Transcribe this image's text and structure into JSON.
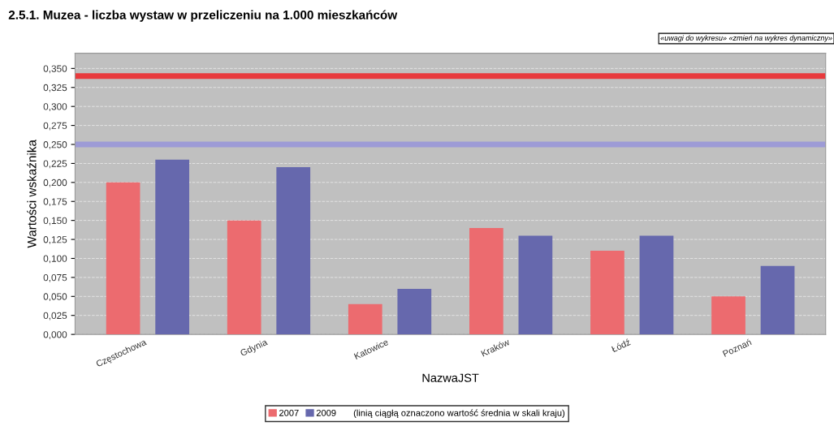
{
  "chart_data": {
    "type": "bar",
    "title": "2.5.1. Muzea - liczba wystaw w przeliczeniu na 1.000 mieszkańców",
    "xlabel": "NazwaJST",
    "ylabel": "Wartości wskaźnika",
    "categories": [
      "Częstochowa",
      "Gdynia",
      "Katowice",
      "Kraków",
      "Łódź",
      "Poznań"
    ],
    "series": [
      {
        "name": "2007",
        "color": "#ec6b6f",
        "values": [
          0.2,
          0.15,
          0.04,
          0.14,
          0.11,
          0.05
        ]
      },
      {
        "name": "2009",
        "color": "#6668ad",
        "values": [
          0.23,
          0.22,
          0.06,
          0.13,
          0.13,
          0.09
        ]
      }
    ],
    "ref_lines": [
      {
        "axis": "y",
        "value": 0.34,
        "color": "#e83a3d"
      },
      {
        "axis": "y",
        "value": 0.25,
        "color": "#9d9bd6"
      }
    ],
    "ylim": [
      0,
      0.37
    ],
    "yticks": [
      {
        "value": 0,
        "label": "0,000"
      },
      {
        "value": 0.025,
        "label": "0,025"
      },
      {
        "value": 0.05,
        "label": "0,050"
      },
      {
        "value": 0.075,
        "label": "0,075"
      },
      {
        "value": 0.1,
        "label": "0,100"
      },
      {
        "value": 0.125,
        "label": "0,125"
      },
      {
        "value": 0.15,
        "label": "0,150"
      },
      {
        "value": 0.175,
        "label": "0,175"
      },
      {
        "value": 0.2,
        "label": "0,200"
      },
      {
        "value": 0.225,
        "label": "0,225"
      },
      {
        "value": 0.25,
        "label": "0,250"
      },
      {
        "value": 0.275,
        "label": "0,275"
      },
      {
        "value": 0.3,
        "label": "0,300"
      },
      {
        "value": 0.325,
        "label": "0,325"
      },
      {
        "value": 0.35,
        "label": "0,350"
      }
    ],
    "grid": "y",
    "legend": "bottom",
    "annotations": [
      "«uwagi do wykresu» «zmień na wykres dynamiczny»",
      "(linią ciągłą oznaczono wartość średnia w skali kraju)"
    ]
  }
}
